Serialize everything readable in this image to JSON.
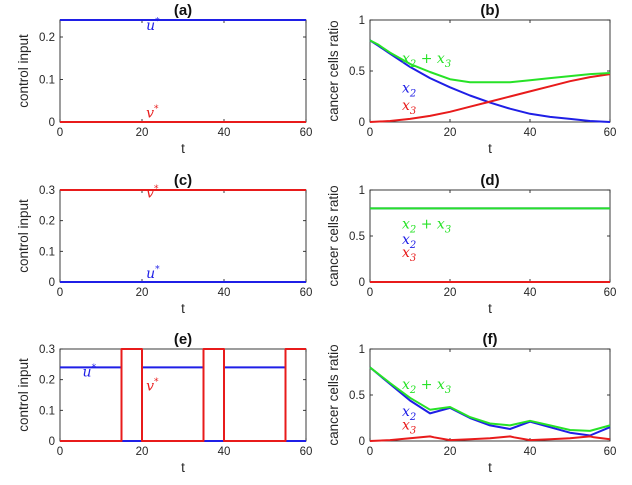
{
  "colors": {
    "blue": "#1f1fe6",
    "red": "#e81b1b",
    "green": "#27e227",
    "axis": "#262626"
  },
  "chart_data": [
    {
      "id": "a",
      "type": "line",
      "title": "(a)",
      "xlabel": "t",
      "ylabel": "control input",
      "xlim": [
        0,
        60
      ],
      "ylim": [
        0,
        0.24
      ],
      "xticks": [
        0,
        20,
        40,
        60
      ],
      "xtick_labels": [
        "0",
        "20",
        "40",
        "60"
      ],
      "yticks": [
        0,
        0.1,
        0.2
      ],
      "ytick_labels": [
        "0",
        "0.1",
        "0.2"
      ],
      "series": [
        {
          "name": "u*",
          "color": "blue",
          "x": [
            0,
            60
          ],
          "y": [
            0.24,
            0.24
          ]
        },
        {
          "name": "v*",
          "color": "red",
          "x": [
            0,
            60
          ],
          "y": [
            0,
            0
          ]
        }
      ],
      "annotations": [
        {
          "base": "u",
          "sup": "*",
          "x": 21,
          "y": 0.21,
          "color": "blue"
        },
        {
          "base": "v",
          "sup": "*",
          "x": 21,
          "y": 0.003,
          "color": "red"
        }
      ]
    },
    {
      "id": "b",
      "type": "line",
      "title": "(b)",
      "xlabel": "t",
      "ylabel": "cancer cells ratio",
      "xlim": [
        0,
        60
      ],
      "ylim": [
        0,
        1
      ],
      "xticks": [
        0,
        20,
        40,
        60
      ],
      "xtick_labels": [
        "0",
        "20",
        "40",
        "60"
      ],
      "yticks": [
        0,
        0.5,
        1
      ],
      "ytick_labels": [
        "0",
        "0.5",
        "1"
      ],
      "series": [
        {
          "name": "x2",
          "color": "blue",
          "x": [
            0,
            2,
            5,
            10,
            15,
            20,
            25,
            30,
            35,
            40,
            45,
            50,
            55,
            60
          ],
          "y": [
            0.8,
            0.75,
            0.67,
            0.54,
            0.43,
            0.34,
            0.26,
            0.19,
            0.13,
            0.08,
            0.05,
            0.03,
            0.01,
            0.0
          ]
        },
        {
          "name": "x3",
          "color": "red",
          "x": [
            0,
            5,
            10,
            15,
            20,
            25,
            30,
            35,
            40,
            45,
            50,
            55,
            60
          ],
          "y": [
            0.0,
            0.01,
            0.03,
            0.06,
            0.1,
            0.15,
            0.2,
            0.25,
            0.3,
            0.35,
            0.4,
            0.44,
            0.47
          ]
        },
        {
          "name": "x2 + x3",
          "color": "green",
          "x": [
            0,
            2,
            5,
            10,
            15,
            20,
            25,
            30,
            35,
            40,
            45,
            50,
            55,
            60
          ],
          "y": [
            0.8,
            0.76,
            0.68,
            0.57,
            0.49,
            0.42,
            0.39,
            0.39,
            0.39,
            0.41,
            0.43,
            0.45,
            0.47,
            0.48
          ]
        }
      ],
      "annotations": [
        {
          "base": "x",
          "sub": "2",
          "plus_base": "x",
          "plus_sub": "3",
          "x": 8,
          "y": 0.55,
          "color": "green"
        },
        {
          "base": "x",
          "sub": "2",
          "x": 8,
          "y": 0.26,
          "color": "blue"
        },
        {
          "base": "x",
          "sub": "3",
          "x": 8,
          "y": 0.09,
          "color": "red"
        }
      ]
    },
    {
      "id": "c",
      "type": "line",
      "title": "(c)",
      "xlabel": "t",
      "ylabel": "control input",
      "xlim": [
        0,
        60
      ],
      "ylim": [
        0,
        0.3
      ],
      "xticks": [
        0,
        20,
        40,
        60
      ],
      "xtick_labels": [
        "0",
        "20",
        "40",
        "60"
      ],
      "yticks": [
        0,
        0.1,
        0.2,
        0.3
      ],
      "ytick_labels": [
        "0",
        "0.1",
        "0.2",
        "0.3"
      ],
      "series": [
        {
          "name": "v*",
          "color": "red",
          "x": [
            0,
            60
          ],
          "y": [
            0.3,
            0.3
          ]
        },
        {
          "name": "u*",
          "color": "blue",
          "x": [
            0,
            60
          ],
          "y": [
            0,
            0
          ]
        }
      ],
      "annotations": [
        {
          "base": "v",
          "sup": "*",
          "x": 21,
          "y": 0.265,
          "color": "red"
        },
        {
          "base": "u",
          "sup": "*",
          "x": 21,
          "y": 0.003,
          "color": "blue"
        }
      ]
    },
    {
      "id": "d",
      "type": "line",
      "title": "(d)",
      "xlabel": "t",
      "ylabel": "cancer cells ratio",
      "xlim": [
        0,
        60
      ],
      "ylim": [
        0,
        1
      ],
      "xticks": [
        0,
        20,
        40,
        60
      ],
      "xtick_labels": [
        "0",
        "20",
        "40",
        "60"
      ],
      "yticks": [
        0,
        0.5,
        1
      ],
      "ytick_labels": [
        "0",
        "0.5",
        "1"
      ],
      "series": [
        {
          "name": "x2",
          "color": "blue",
          "x": [
            0,
            60
          ],
          "y": [
            0.8,
            0.8
          ]
        },
        {
          "name": "x2 + x3",
          "color": "green",
          "x": [
            0,
            60
          ],
          "y": [
            0.8,
            0.8
          ]
        },
        {
          "name": "x3",
          "color": "red",
          "x": [
            0,
            60
          ],
          "y": [
            0,
            0
          ]
        }
      ],
      "annotations": [
        {
          "base": "x",
          "sub": "2",
          "plus_base": "x",
          "plus_sub": "3",
          "x": 8,
          "y": 0.55,
          "color": "green"
        },
        {
          "base": "x",
          "sub": "2",
          "x": 8,
          "y": 0.38,
          "color": "blue"
        },
        {
          "base": "x",
          "sub": "3",
          "x": 8,
          "y": 0.24,
          "color": "red"
        }
      ]
    },
    {
      "id": "e",
      "type": "line",
      "title": "(e)",
      "xlabel": "t",
      "ylabel": "control input",
      "xlim": [
        0,
        60
      ],
      "ylim": [
        0,
        0.3
      ],
      "xticks": [
        0,
        20,
        40,
        60
      ],
      "xtick_labels": [
        "0",
        "20",
        "40",
        "60"
      ],
      "yticks": [
        0,
        0.1,
        0.2,
        0.3
      ],
      "ytick_labels": [
        "0",
        "0.1",
        "0.2",
        "0.3"
      ],
      "series": [
        {
          "name": "u*",
          "color": "blue",
          "x": [
            0,
            15,
            15,
            20,
            20,
            35,
            35,
            40,
            40,
            55,
            55,
            60
          ],
          "y": [
            0.24,
            0.24,
            0,
            0,
            0.24,
            0.24,
            0,
            0,
            0.24,
            0.24,
            0,
            0
          ]
        },
        {
          "name": "v*",
          "color": "red",
          "x": [
            0,
            15,
            15,
            20,
            20,
            35,
            35,
            40,
            40,
            55,
            55,
            60
          ],
          "y": [
            0,
            0,
            0.3,
            0.3,
            0,
            0,
            0.3,
            0.3,
            0,
            0,
            0.3,
            0.3
          ]
        }
      ],
      "annotations": [
        {
          "base": "u",
          "sup": "*",
          "x": 5.5,
          "y": 0.2,
          "color": "blue"
        },
        {
          "base": "v",
          "sup": "*",
          "x": 21,
          "y": 0.155,
          "color": "red"
        }
      ]
    },
    {
      "id": "f",
      "type": "line",
      "title": "(f)",
      "xlabel": "t",
      "ylabel": "cancer cells ratio",
      "xlim": [
        0,
        60
      ],
      "ylim": [
        0,
        1
      ],
      "xticks": [
        0,
        20,
        40,
        60
      ],
      "xtick_labels": [
        "0",
        "20",
        "40",
        "60"
      ],
      "yticks": [
        0,
        0.5,
        1
      ],
      "ytick_labels": [
        "0",
        "0.5",
        "1"
      ],
      "series": [
        {
          "name": "x2",
          "color": "blue",
          "x": [
            0,
            5,
            10,
            15,
            20,
            25,
            30,
            35,
            40,
            45,
            50,
            55,
            60
          ],
          "y": [
            0.8,
            0.62,
            0.44,
            0.3,
            0.36,
            0.25,
            0.17,
            0.13,
            0.21,
            0.15,
            0.09,
            0.06,
            0.15
          ]
        },
        {
          "name": "x3",
          "color": "red",
          "x": [
            0,
            5,
            10,
            15,
            16,
            20,
            25,
            30,
            35,
            36,
            40,
            45,
            50,
            55,
            56,
            60
          ],
          "y": [
            0.0,
            0.01,
            0.03,
            0.05,
            0.04,
            0.01,
            0.02,
            0.03,
            0.05,
            0.04,
            0.01,
            0.02,
            0.03,
            0.05,
            0.04,
            0.02
          ]
        },
        {
          "name": "x2 + x3",
          "color": "green",
          "x": [
            0,
            5,
            10,
            15,
            20,
            25,
            30,
            35,
            40,
            45,
            50,
            55,
            60
          ],
          "y": [
            0.8,
            0.63,
            0.47,
            0.34,
            0.37,
            0.26,
            0.19,
            0.17,
            0.22,
            0.17,
            0.12,
            0.11,
            0.17
          ]
        }
      ],
      "annotations": [
        {
          "base": "x",
          "sub": "2",
          "plus_base": "x",
          "plus_sub": "3",
          "x": 8,
          "y": 0.53,
          "color": "green"
        },
        {
          "base": "x",
          "sub": "2",
          "x": 8,
          "y": 0.24,
          "color": "blue"
        },
        {
          "base": "x",
          "sub": "3",
          "x": 8,
          "y": 0.09,
          "color": "red"
        }
      ]
    }
  ]
}
